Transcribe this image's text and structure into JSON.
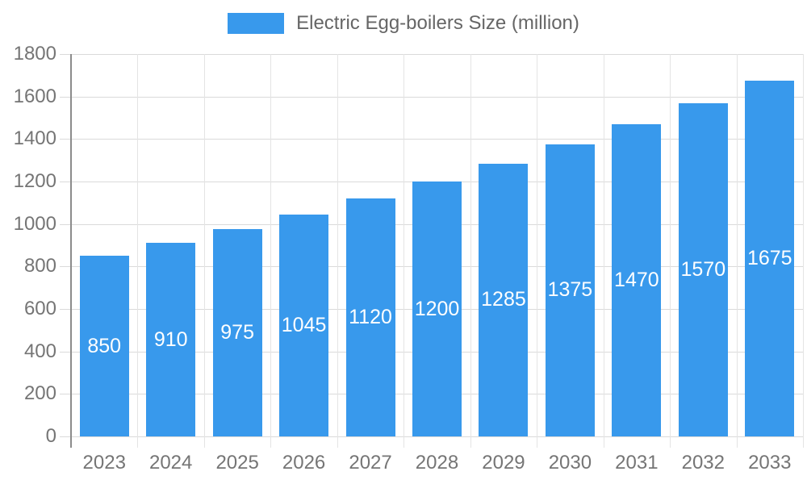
{
  "legend": {
    "label": "Electric Egg-boilers Size (million)"
  },
  "chart_data": {
    "type": "bar",
    "title": "Electric Egg-boilers Size (million)",
    "categories": [
      "2023",
      "2024",
      "2025",
      "2026",
      "2027",
      "2028",
      "2029",
      "2030",
      "2031",
      "2032",
      "2033"
    ],
    "values": [
      850,
      910,
      975,
      1045,
      1120,
      1200,
      1285,
      1375,
      1470,
      1570,
      1675
    ],
    "xlabel": "",
    "ylabel": "",
    "ylim": [
      0,
      1800
    ],
    "yticks": [
      0,
      200,
      400,
      600,
      800,
      1000,
      1200,
      1400,
      1600,
      1800
    ],
    "grid": true,
    "legend_position": "top-center",
    "value_labels": "inside-center",
    "colors": {
      "bar": "#3899EC",
      "value_label": "#FFFFFF",
      "axis_text": "#757575",
      "legend_text": "#666666",
      "axis_line": "#8C8C8C",
      "gridline": "#DADADA",
      "background": "#FFFFFF"
    }
  }
}
